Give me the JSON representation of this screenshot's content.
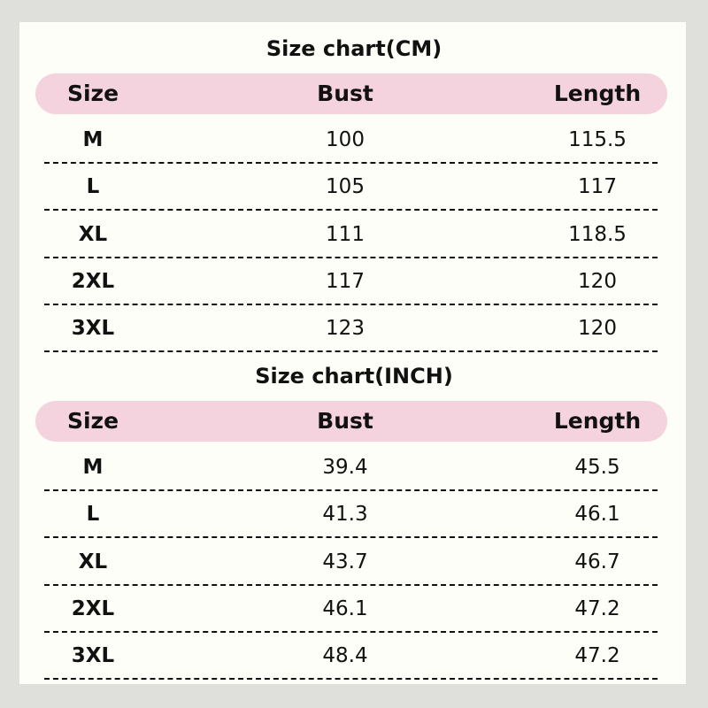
{
  "tables": [
    {
      "title": "Size chart(CM)",
      "headers": [
        "Size",
        "Bust",
        "Length"
      ],
      "rows": [
        [
          "M",
          "100",
          "115.5"
        ],
        [
          "L",
          "105",
          "117"
        ],
        [
          "XL",
          "111",
          "118.5"
        ],
        [
          "2XL",
          "117",
          "120"
        ],
        [
          "3XL",
          "123",
          "120"
        ]
      ]
    },
    {
      "title": "Size chart(INCH)",
      "headers": [
        "Size",
        "Bust",
        "Length"
      ],
      "rows": [
        [
          "M",
          "39.4",
          "45.5"
        ],
        [
          "L",
          "41.3",
          "46.1"
        ],
        [
          "XL",
          "43.7",
          "46.7"
        ],
        [
          "2XL",
          "46.1",
          "47.2"
        ],
        [
          "3XL",
          "48.4",
          "47.2"
        ]
      ]
    }
  ],
  "colors": {
    "background": "#dfdfdb",
    "panel": "#fefef8",
    "header": "#f5d3de"
  }
}
